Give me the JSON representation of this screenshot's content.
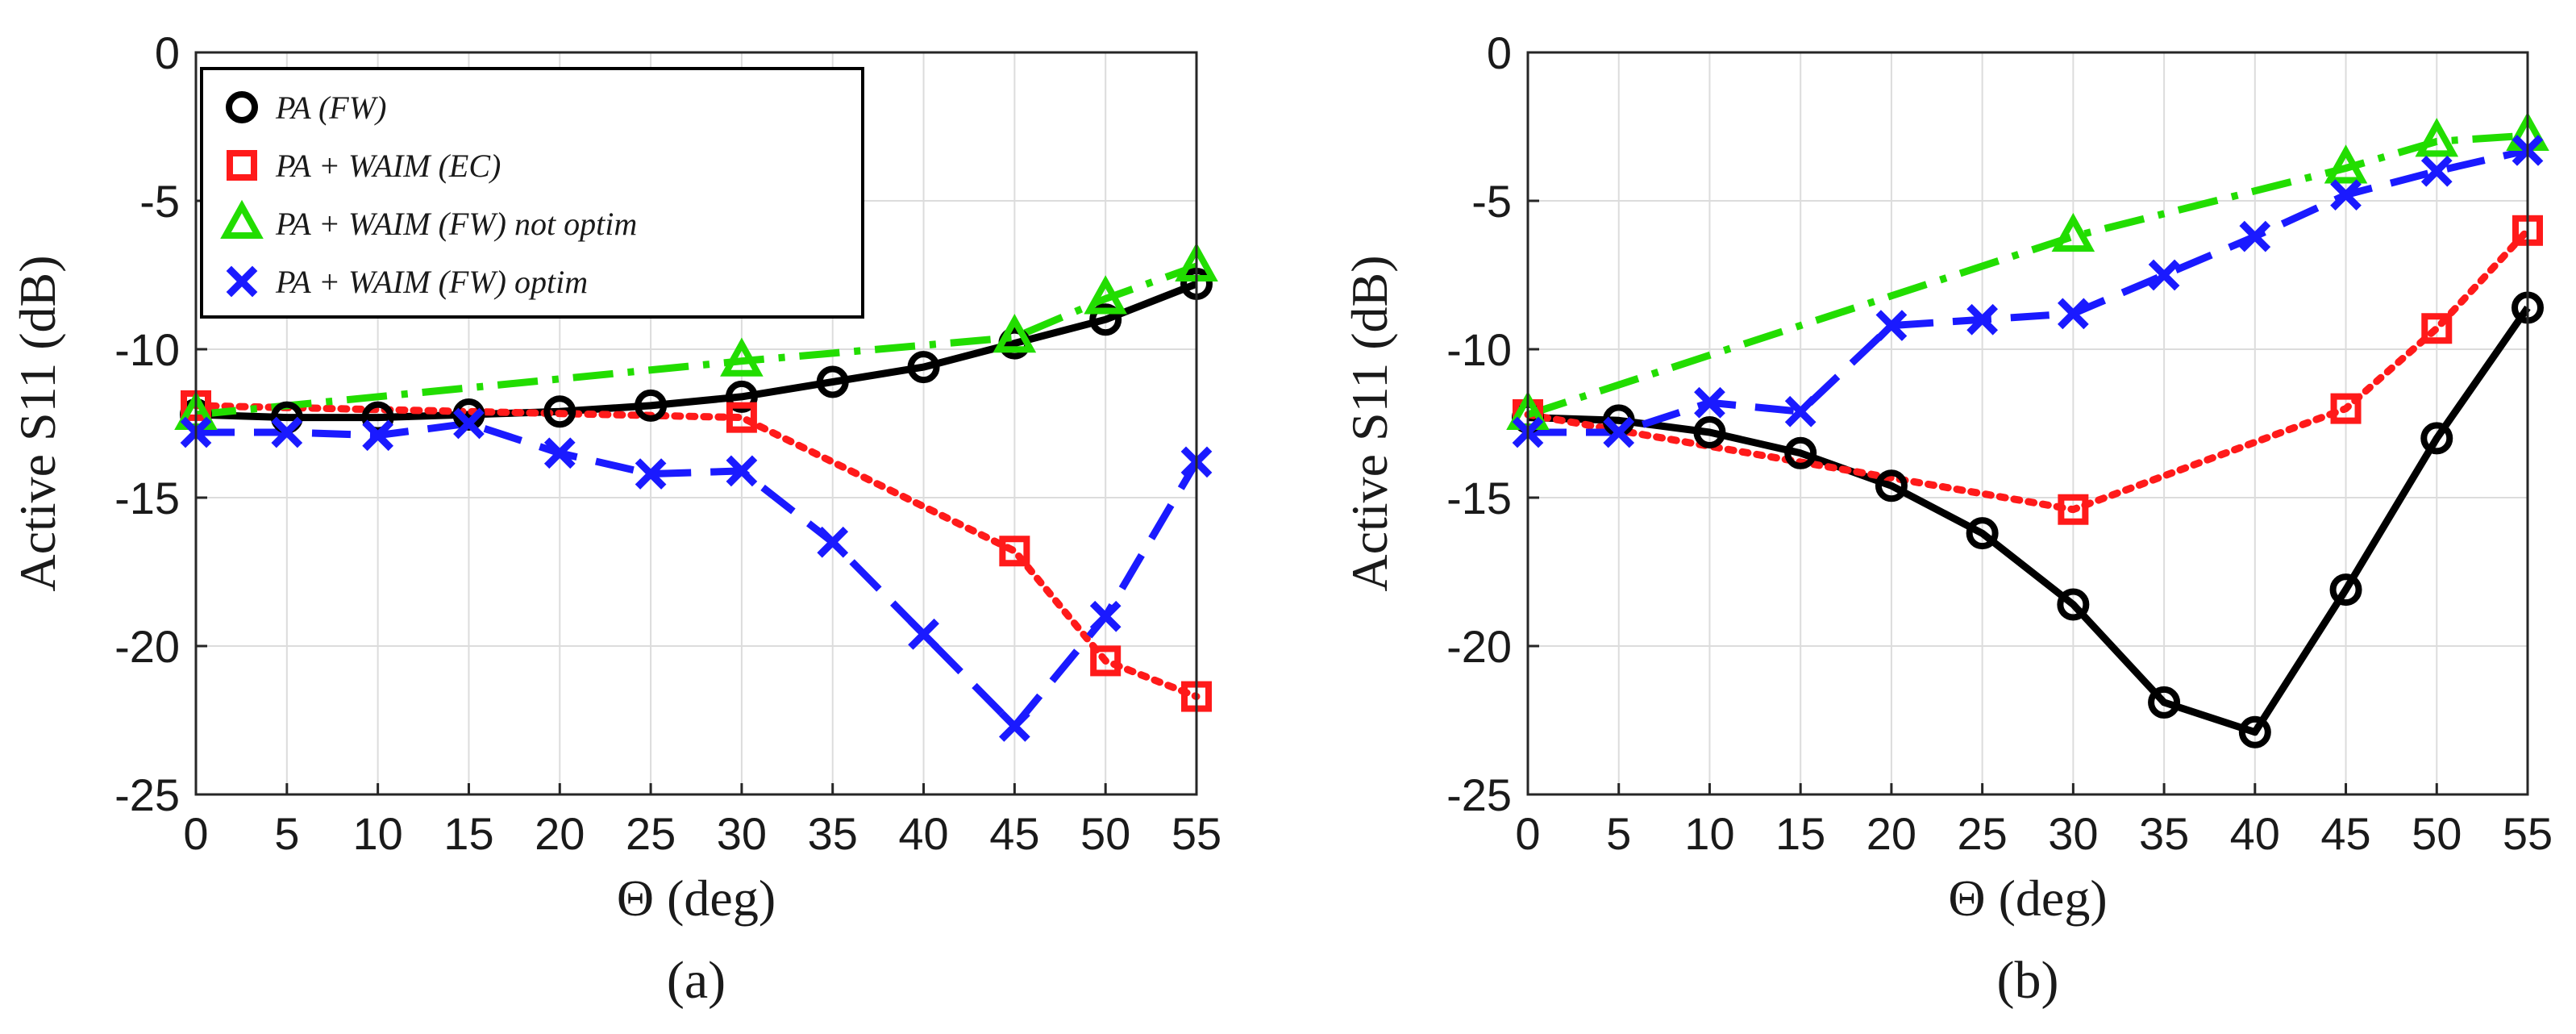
{
  "chart_data": [
    {
      "panel": "a",
      "type": "line",
      "caption": "(a)",
      "xlabel": "Θ (deg)",
      "ylabel": "Active S11 (dB)",
      "xlim": [
        0,
        55
      ],
      "ylim": [
        -25,
        0
      ],
      "xticks": [
        0,
        5,
        10,
        15,
        20,
        25,
        30,
        35,
        40,
        45,
        50,
        55
      ],
      "yticks": [
        0,
        -5,
        -10,
        -15,
        -20,
        -25
      ],
      "grid": true,
      "legend_position": "top-left",
      "series": [
        {
          "name": "PA (FW)",
          "color": "#000000",
          "marker": "circle",
          "dash": "solid",
          "x": [
            0,
            5,
            10,
            15,
            20,
            25,
            30,
            35,
            40,
            45,
            50,
            55
          ],
          "y": [
            -12.2,
            -12.3,
            -12.3,
            -12.2,
            -12.1,
            -11.9,
            -11.6,
            -11.1,
            -10.6,
            -9.8,
            -9.0,
            -7.8
          ]
        },
        {
          "name": "PA + WAIM (EC)",
          "color": "#ff1a1a",
          "marker": "square",
          "dash": "dotted",
          "x": [
            0,
            30,
            45,
            50,
            55
          ],
          "y": [
            -11.9,
            -12.3,
            -16.8,
            -20.5,
            -21.7
          ]
        },
        {
          "name": "PA + WAIM (FW) not optim",
          "color": "#22dd00",
          "marker": "triangle",
          "dash": "dashdot",
          "x": [
            0,
            30,
            45,
            50,
            55
          ],
          "y": [
            -12.2,
            -10.4,
            -9.6,
            -8.3,
            -7.2
          ]
        },
        {
          "name": "PA + WAIM (FW) optim",
          "color": "#1a1aff",
          "marker": "x",
          "dash": "dashed",
          "x": [
            0,
            5,
            10,
            15,
            20,
            25,
            30,
            35,
            40,
            45,
            50,
            55
          ],
          "y": [
            -12.8,
            -12.8,
            -12.9,
            -12.5,
            -13.5,
            -14.2,
            -14.1,
            -16.5,
            -19.6,
            -22.7,
            -19.0,
            -13.8
          ]
        }
      ]
    },
    {
      "panel": "b",
      "type": "line",
      "caption": "(b)",
      "xlabel": "Θ (deg)",
      "ylabel": "Active S11 (dB)",
      "xlim": [
        0,
        55
      ],
      "ylim": [
        -25,
        0
      ],
      "xticks": [
        0,
        5,
        10,
        15,
        20,
        25,
        30,
        35,
        40,
        45,
        50,
        55
      ],
      "yticks": [
        0,
        -5,
        -10,
        -15,
        -20,
        -25
      ],
      "grid": true,
      "series": [
        {
          "name": "PA (FW)",
          "color": "#000000",
          "marker": "circle",
          "dash": "solid",
          "x": [
            0,
            5,
            10,
            15,
            20,
            25,
            30,
            35,
            40,
            45,
            50,
            55
          ],
          "y": [
            -12.3,
            -12.4,
            -12.8,
            -13.5,
            -14.6,
            -16.2,
            -18.6,
            -21.9,
            -22.9,
            -18.1,
            -13.0,
            -8.6
          ]
        },
        {
          "name": "PA + WAIM (EC)",
          "color": "#ff1a1a",
          "marker": "square",
          "dash": "dotted",
          "x": [
            0,
            30,
            45,
            50,
            55
          ],
          "y": [
            -12.2,
            -15.4,
            -12.0,
            -9.3,
            -6.0
          ]
        },
        {
          "name": "PA + WAIM (FW) not optim",
          "color": "#22dd00",
          "marker": "triangle",
          "dash": "dashdot",
          "x": [
            0,
            30,
            45,
            50,
            55
          ],
          "y": [
            -12.2,
            -6.2,
            -3.9,
            -3.0,
            -2.8
          ]
        },
        {
          "name": "PA + WAIM (FW) optim",
          "color": "#1a1aff",
          "marker": "x",
          "dash": "dashed",
          "x": [
            0,
            5,
            10,
            15,
            20,
            25,
            30,
            35,
            40,
            45,
            50,
            55
          ],
          "y": [
            -12.8,
            -12.8,
            -11.8,
            -12.1,
            -9.2,
            -9.0,
            -8.8,
            -7.5,
            -6.2,
            -4.8,
            -4.0,
            -3.3
          ]
        }
      ]
    }
  ]
}
